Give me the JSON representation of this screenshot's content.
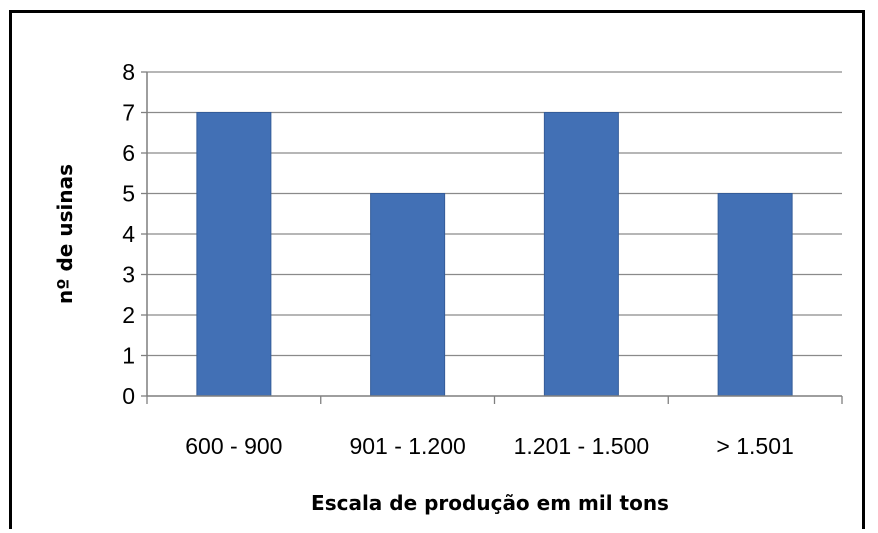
{
  "chart_data": {
    "type": "bar",
    "title": "",
    "xlabel": "Escala de produção em mil tons",
    "ylabel": "nº de usinas",
    "categories": [
      "600 - 900",
      "901 - 1.200",
      "1.201 - 1.500",
      "> 1.501"
    ],
    "values": [
      7,
      5,
      7,
      5
    ],
    "ylim": [
      0,
      8
    ],
    "yticks": [
      "0",
      "1",
      "2",
      "3",
      "4",
      "5",
      "6",
      "7",
      "8"
    ],
    "grid": true,
    "legend": "none",
    "colors": {
      "bar": "#4270b5",
      "bar_edge": "#345c99",
      "grid": "#8a8a8a",
      "axis": "#7f7f7f"
    }
  }
}
